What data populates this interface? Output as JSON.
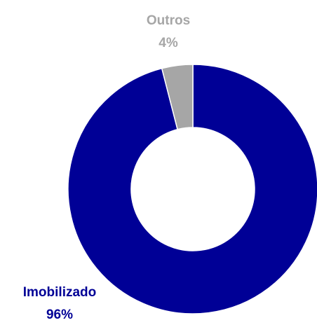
{
  "chart_data": {
    "type": "donut",
    "categories": [
      "Imobilizado",
      "Outros"
    ],
    "values": [
      96,
      4
    ],
    "value_labels": [
      "96%",
      "4%"
    ],
    "colors": [
      "#000096",
      "#a6a6a6"
    ]
  }
}
